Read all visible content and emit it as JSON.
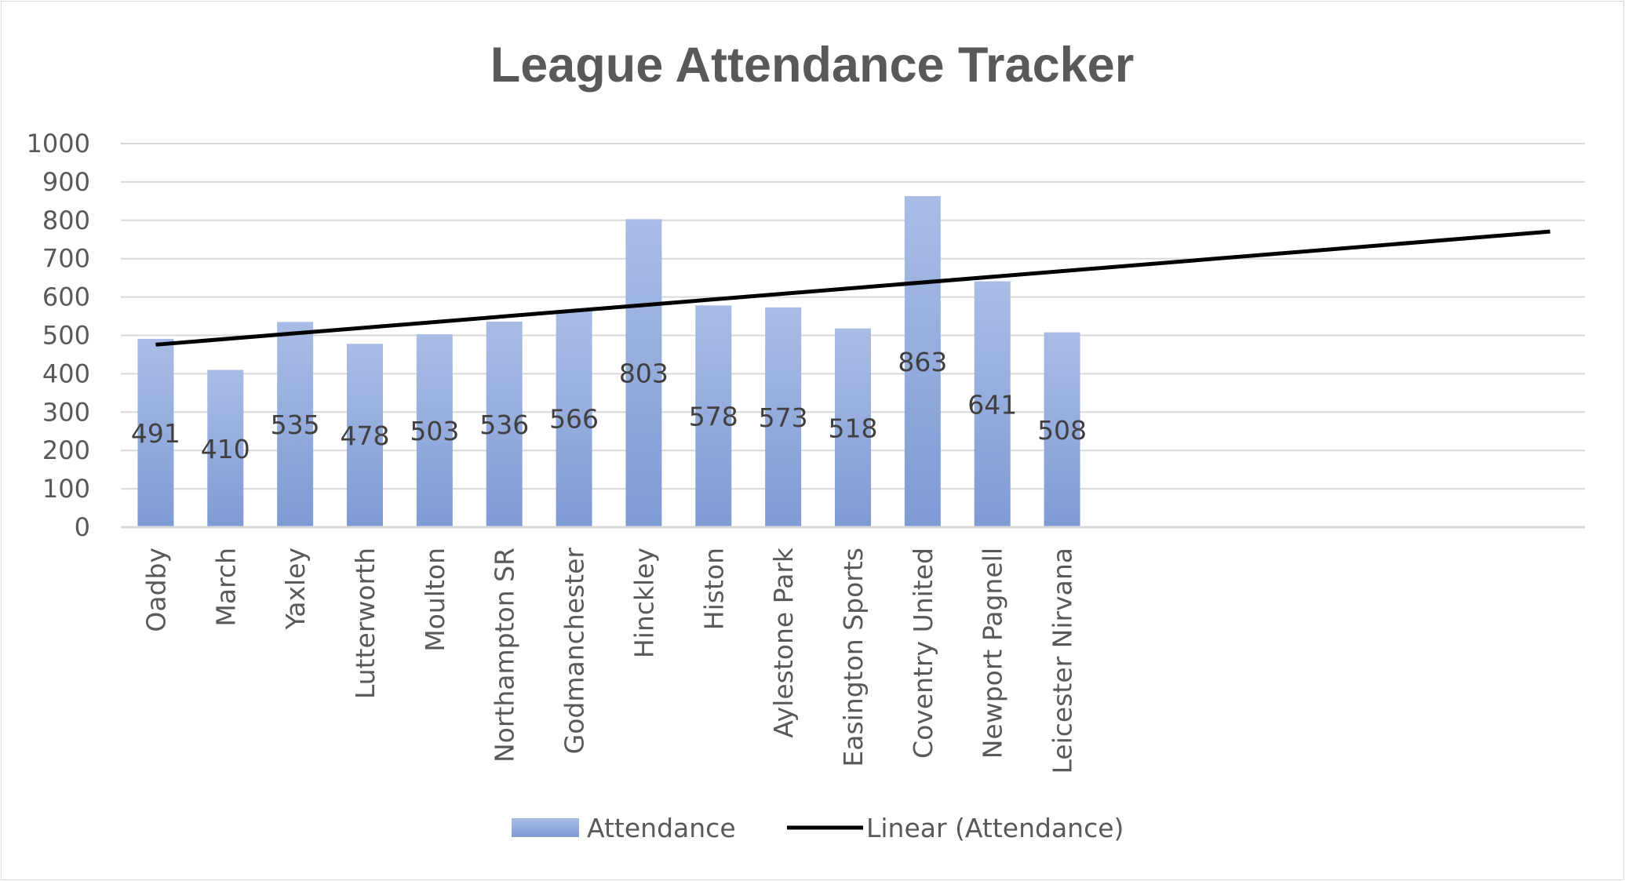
{
  "chart_data": {
    "type": "bar",
    "title": "League Attendance Tracker",
    "categories": [
      "Oadby",
      "March",
      "Yaxley",
      "Lutterworth",
      "Moulton",
      "Northampton SR",
      "Godmanchester",
      "Hinckley",
      "Histon",
      "Aylestone Park",
      "Easington Sports",
      "Coventry United",
      "Newport Pagnell",
      "Leicester Nirvana"
    ],
    "series": [
      {
        "name": "Attendance",
        "values": [
          491,
          410,
          535,
          478,
          503,
          536,
          566,
          803,
          578,
          573,
          518,
          863,
          641,
          508
        ],
        "color": "#8faadc"
      }
    ],
    "trendline": {
      "name": "Linear (Attendance)",
      "type": "linear",
      "forward_periods": 7,
      "color": "#000000"
    },
    "xlabel": "",
    "ylabel": "",
    "ylim": [
      0,
      1000
    ],
    "yticks": [
      "0",
      "100",
      "200",
      "300",
      "400",
      "500",
      "600",
      "700",
      "800",
      "900",
      "1000"
    ],
    "grid": true,
    "legend": "bottom",
    "data_labels": true
  }
}
